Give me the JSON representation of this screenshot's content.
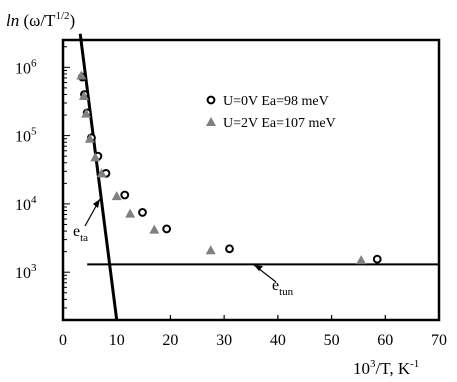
{
  "chart_data": {
    "type": "scatter",
    "ylabel_main": "ln",
    "ylabel_expr": "(ω/T",
    "ylabel_sup": "1/2",
    "ylabel_close": ")",
    "xlabel_main": "10",
    "xlabel_sup1": "3",
    "xlabel_mid": "/T, K",
    "xlabel_sup2": "-1",
    "xlim": [
      0,
      70
    ],
    "ylim_log10": [
      2.3,
      6.4
    ],
    "y_scale": "log",
    "x_ticks": [
      0,
      10,
      20,
      30,
      40,
      50,
      60,
      70
    ],
    "y_ticks": [
      {
        "exp": 3,
        "base": "10",
        "sup": "3"
      },
      {
        "exp": 4,
        "base": "10",
        "sup": "4"
      },
      {
        "exp": 5,
        "base": "10",
        "sup": "5"
      },
      {
        "exp": 6,
        "base": "10",
        "sup": "6"
      }
    ],
    "legend_position": "top-right",
    "series": [
      {
        "name": "U=0V Ea=98 meV",
        "marker": "open-circle",
        "color": "#000000",
        "points": [
          [
            3.6,
            720000
          ],
          [
            4.0,
            400000
          ],
          [
            4.5,
            215000
          ],
          [
            5.3,
            93000
          ],
          [
            6.5,
            50000
          ],
          [
            8.0,
            28000
          ],
          [
            11.5,
            13500
          ],
          [
            14.8,
            7500
          ],
          [
            19.3,
            4300
          ],
          [
            31.0,
            2200
          ],
          [
            58.5,
            1550
          ]
        ]
      },
      {
        "name": "U=2V Ea=107 meV",
        "marker": "filled-triangle",
        "color": "#808080",
        "points": [
          [
            3.4,
            760000
          ],
          [
            3.9,
            380000
          ],
          [
            4.3,
            210000
          ],
          [
            5.0,
            90000
          ],
          [
            6.0,
            48000
          ],
          [
            7.2,
            28000
          ],
          [
            10.0,
            13000
          ],
          [
            12.5,
            7200
          ],
          [
            17.0,
            4200
          ],
          [
            27.5,
            2100
          ],
          [
            55.5,
            1500
          ]
        ]
      }
    ],
    "lines": [
      {
        "label_main": "e",
        "label_sub": "ta",
        "from": [
          3.2,
          3100000
        ],
        "to": [
          10.0,
          200
        ]
      },
      {
        "label_main": "e",
        "label_sub": "tun",
        "from": [
          4.5,
          1300
        ],
        "to": [
          70,
          1300
        ]
      }
    ]
  }
}
